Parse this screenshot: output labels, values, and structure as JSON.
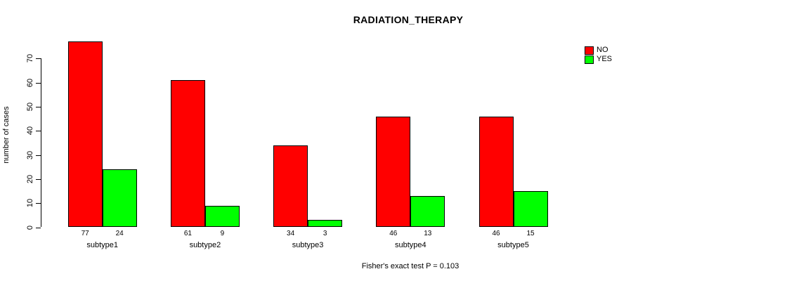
{
  "chart_data": {
    "type": "bar",
    "title": "RADIATION_THERAPY",
    "ylabel": "number of cases",
    "xlabel": "",
    "footer": "Fisher's exact test P = 0.103",
    "categories": [
      "subtype1",
      "subtype2",
      "subtype3",
      "subtype4",
      "subtype5"
    ],
    "series": [
      {
        "name": "NO",
        "color": "#FF0000",
        "values": [
          77,
          61,
          34,
          46,
          46
        ]
      },
      {
        "name": "YES",
        "color": "#00FF00",
        "values": [
          24,
          9,
          3,
          13,
          15
        ]
      }
    ],
    "bar_value_labels": [
      [
        77,
        24
      ],
      [
        61,
        9
      ],
      [
        34,
        3
      ],
      [
        46,
        13
      ],
      [
        46,
        15
      ]
    ],
    "yticks": [
      0,
      10,
      20,
      30,
      40,
      50,
      60,
      70
    ],
    "ylim": [
      0,
      80
    ],
    "grid": false,
    "legend_position": "top-right",
    "bar_border_color": "#000000",
    "background_color": "#FFFFFF"
  }
}
